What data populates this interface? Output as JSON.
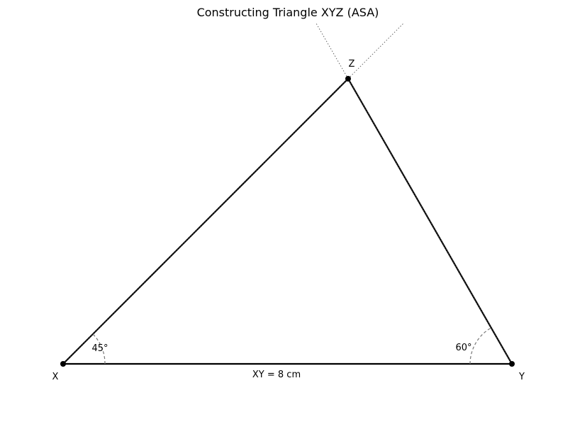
{
  "figure": {
    "title": "Constructing Triangle XYZ (ASA)"
  },
  "vertices": {
    "x_label": "X",
    "y_label": "Y",
    "z_label": "Z"
  },
  "sides": {
    "xy_label": "XY = 8 cm"
  },
  "angles": {
    "at_x": "45°",
    "at_y": "60°"
  },
  "colors": {
    "stroke": "#000000",
    "construction": "#666666",
    "arc": "#777777",
    "background": "#ffffff"
  }
}
